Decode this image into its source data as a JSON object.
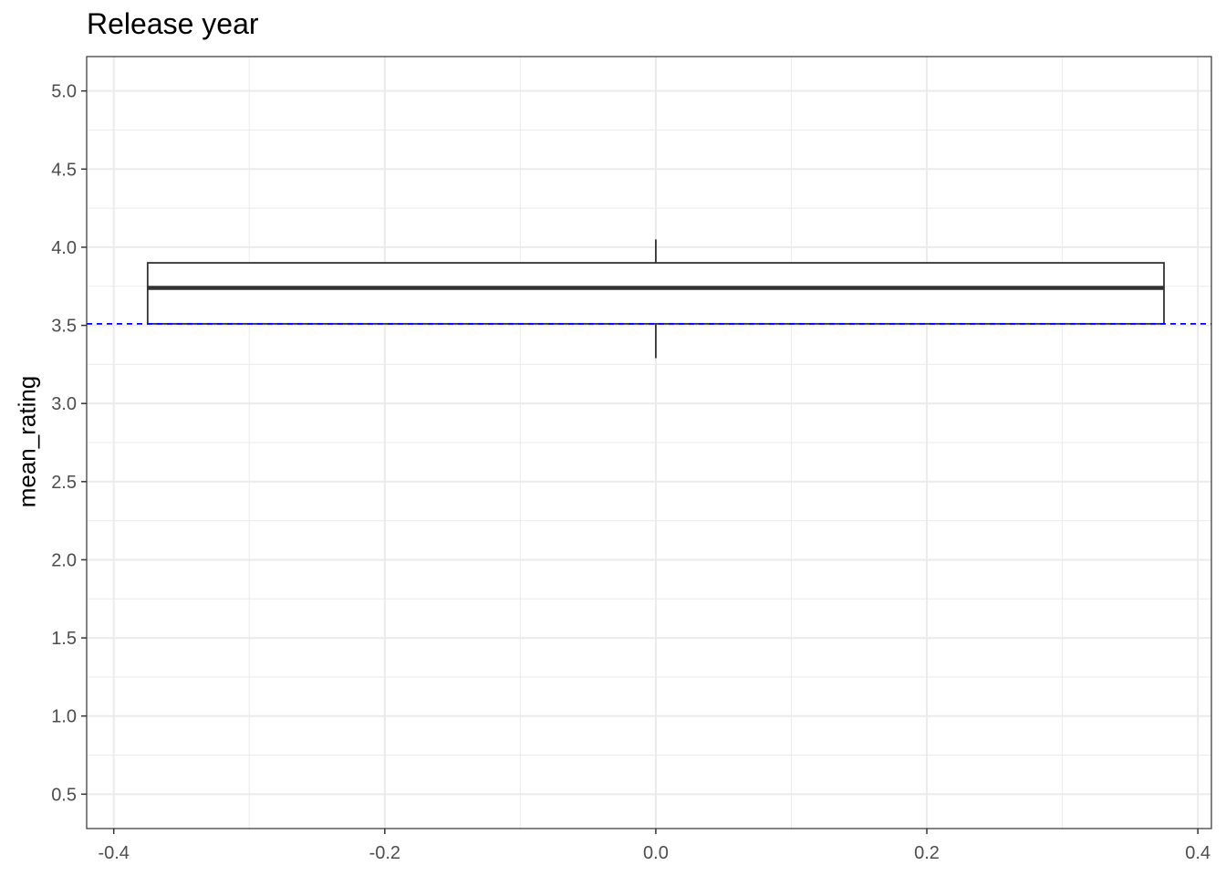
{
  "chart_data": {
    "type": "box",
    "title": "Release year",
    "xlabel": "",
    "ylabel": "mean_rating",
    "xlim": [
      -0.42,
      0.41
    ],
    "ylim": [
      0.28,
      5.22
    ],
    "x_ticks": [
      -0.4,
      -0.2,
      0.0,
      0.2,
      0.4
    ],
    "x_tick_labels": [
      "-0.4",
      "-0.2",
      "0.0",
      "0.2",
      "0.4"
    ],
    "y_ticks": [
      0.5,
      1.0,
      1.5,
      2.0,
      2.5,
      3.0,
      3.5,
      4.0,
      4.5,
      5.0
    ],
    "y_tick_labels": [
      "0.5",
      "1.0",
      "1.5",
      "2.0",
      "2.5",
      "3.0",
      "3.5",
      "4.0",
      "4.5",
      "5.0"
    ],
    "grid": true,
    "box": {
      "x_center": 0.0,
      "x_left": -0.375,
      "x_right": 0.375,
      "whisker_low": 3.29,
      "q1": 3.51,
      "median": 3.74,
      "q3": 3.9,
      "whisker_high": 4.05
    },
    "reference_line": {
      "y": 3.51,
      "style": "dashed",
      "color": "#0000ff"
    },
    "colors": {
      "box_stroke": "#333333",
      "grid": "#ebebeb",
      "panel_border": "#333333"
    }
  }
}
